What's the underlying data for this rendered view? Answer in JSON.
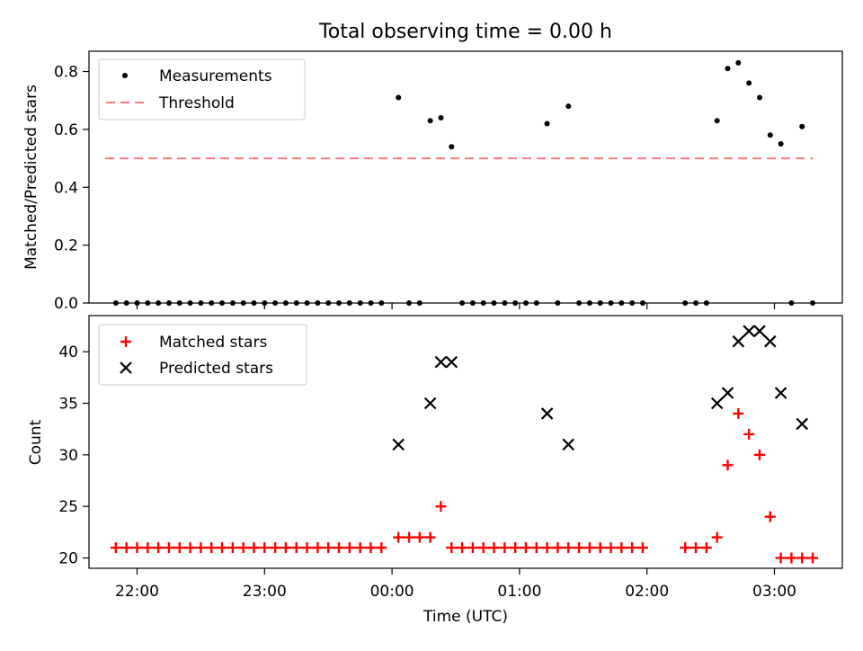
{
  "title": "Total observing time = 0.00 h",
  "chart_data": [
    {
      "type": "scatter",
      "ylabel": "Matched/Predicted stars",
      "ylim": [
        0,
        0.87
      ],
      "yticks": [
        "0.0",
        "0.2",
        "0.4",
        "0.6",
        "0.8"
      ],
      "ytick_values": [
        0,
        0.2,
        0.4,
        0.6,
        0.8
      ],
      "legend": "top-left",
      "series": [
        {
          "name": "Measurements",
          "color": "#000000",
          "points": [
            [
              "21:50",
              0
            ],
            [
              "21:55",
              0
            ],
            [
              "22:00",
              0
            ],
            [
              "22:05",
              0
            ],
            [
              "22:10",
              0
            ],
            [
              "22:15",
              0
            ],
            [
              "22:20",
              0
            ],
            [
              "22:25",
              0
            ],
            [
              "22:30",
              0
            ],
            [
              "22:35",
              0
            ],
            [
              "22:40",
              0
            ],
            [
              "22:45",
              0
            ],
            [
              "22:50",
              0
            ],
            [
              "22:55",
              0
            ],
            [
              "23:00",
              0
            ],
            [
              "23:05",
              0
            ],
            [
              "23:10",
              0
            ],
            [
              "23:15",
              0
            ],
            [
              "23:20",
              0
            ],
            [
              "23:25",
              0
            ],
            [
              "23:30",
              0
            ],
            [
              "23:35",
              0
            ],
            [
              "23:40",
              0
            ],
            [
              "23:45",
              0
            ],
            [
              "23:50",
              0
            ],
            [
              "23:55",
              0
            ],
            [
              "00:03",
              0.71
            ],
            [
              "00:08",
              0
            ],
            [
              "00:13",
              0
            ],
            [
              "00:18",
              0.63
            ],
            [
              "00:23",
              0.64
            ],
            [
              "00:28",
              0.54
            ],
            [
              "00:33",
              0
            ],
            [
              "00:38",
              0
            ],
            [
              "00:43",
              0
            ],
            [
              "00:48",
              0
            ],
            [
              "00:53",
              0
            ],
            [
              "00:58",
              0
            ],
            [
              "01:03",
              0
            ],
            [
              "01:08",
              0
            ],
            [
              "01:13",
              0.62
            ],
            [
              "01:18",
              0
            ],
            [
              "01:23",
              0.68
            ],
            [
              "01:28",
              0
            ],
            [
              "01:33",
              0
            ],
            [
              "01:38",
              0
            ],
            [
              "01:43",
              0
            ],
            [
              "01:48",
              0
            ],
            [
              "01:53",
              0
            ],
            [
              "01:58",
              0
            ],
            [
              "02:18",
              0
            ],
            [
              "02:23",
              0
            ],
            [
              "02:28",
              0
            ],
            [
              "02:33",
              0.63
            ],
            [
              "02:38",
              0.81
            ],
            [
              "02:43",
              0.83
            ],
            [
              "02:48",
              0.76
            ],
            [
              "02:53",
              0.71
            ],
            [
              "02:58",
              0.58
            ],
            [
              "03:03",
              0.55
            ],
            [
              "03:08",
              0
            ],
            [
              "03:13",
              0.61
            ],
            [
              "03:18",
              0
            ]
          ]
        },
        {
          "name": "Threshold",
          "color": "#ff7a7a",
          "x_range": [
            "21:45",
            "03:18"
          ],
          "value": 0.5
        }
      ]
    },
    {
      "type": "scatter",
      "ylabel": "Count",
      "xlabel": "Time (UTC)",
      "ylim": [
        19,
        43.5
      ],
      "yticks": [
        "20",
        "25",
        "30",
        "35",
        "40"
      ],
      "ytick_values": [
        20,
        25,
        30,
        35,
        40
      ],
      "xticks": [
        "22:00",
        "23:00",
        "00:00",
        "01:00",
        "02:00",
        "03:00"
      ],
      "legend": "top-left",
      "series": [
        {
          "name": "Matched stars",
          "color": "#ff0000",
          "marker": "plus",
          "points": [
            [
              "21:50",
              21
            ],
            [
              "21:55",
              21
            ],
            [
              "22:00",
              21
            ],
            [
              "22:05",
              21
            ],
            [
              "22:10",
              21
            ],
            [
              "22:15",
              21
            ],
            [
              "22:20",
              21
            ],
            [
              "22:25",
              21
            ],
            [
              "22:30",
              21
            ],
            [
              "22:35",
              21
            ],
            [
              "22:40",
              21
            ],
            [
              "22:45",
              21
            ],
            [
              "22:50",
              21
            ],
            [
              "22:55",
              21
            ],
            [
              "23:00",
              21
            ],
            [
              "23:05",
              21
            ],
            [
              "23:10",
              21
            ],
            [
              "23:15",
              21
            ],
            [
              "23:20",
              21
            ],
            [
              "23:25",
              21
            ],
            [
              "23:30",
              21
            ],
            [
              "23:35",
              21
            ],
            [
              "23:40",
              21
            ],
            [
              "23:45",
              21
            ],
            [
              "23:50",
              21
            ],
            [
              "23:55",
              21
            ],
            [
              "00:03",
              22
            ],
            [
              "00:08",
              22
            ],
            [
              "00:13",
              22
            ],
            [
              "00:18",
              22
            ],
            [
              "00:23",
              25
            ],
            [
              "00:28",
              21
            ],
            [
              "00:33",
              21
            ],
            [
              "00:38",
              21
            ],
            [
              "00:43",
              21
            ],
            [
              "00:48",
              21
            ],
            [
              "00:53",
              21
            ],
            [
              "00:58",
              21
            ],
            [
              "01:03",
              21
            ],
            [
              "01:08",
              21
            ],
            [
              "01:13",
              21
            ],
            [
              "01:18",
              21
            ],
            [
              "01:23",
              21
            ],
            [
              "01:28",
              21
            ],
            [
              "01:33",
              21
            ],
            [
              "01:38",
              21
            ],
            [
              "01:43",
              21
            ],
            [
              "01:48",
              21
            ],
            [
              "01:53",
              21
            ],
            [
              "01:58",
              21
            ],
            [
              "02:18",
              21
            ],
            [
              "02:23",
              21
            ],
            [
              "02:28",
              21
            ],
            [
              "02:33",
              22
            ],
            [
              "02:38",
              29
            ],
            [
              "02:43",
              34
            ],
            [
              "02:48",
              32
            ],
            [
              "02:53",
              30
            ],
            [
              "02:58",
              24
            ],
            [
              "03:03",
              20
            ],
            [
              "03:08",
              20
            ],
            [
              "03:13",
              20
            ],
            [
              "03:18",
              20
            ]
          ]
        },
        {
          "name": "Predicted stars",
          "color": "#000000",
          "marker": "x",
          "points": [
            [
              "00:03",
              31
            ],
            [
              "00:18",
              35
            ],
            [
              "00:23",
              39
            ],
            [
              "00:28",
              39
            ],
            [
              "01:13",
              34
            ],
            [
              "01:23",
              31
            ],
            [
              "02:33",
              35
            ],
            [
              "02:38",
              36
            ],
            [
              "02:43",
              41
            ],
            [
              "02:48",
              42
            ],
            [
              "02:53",
              42
            ],
            [
              "02:58",
              41
            ],
            [
              "03:03",
              36
            ],
            [
              "03:13",
              33
            ]
          ]
        }
      ]
    }
  ]
}
